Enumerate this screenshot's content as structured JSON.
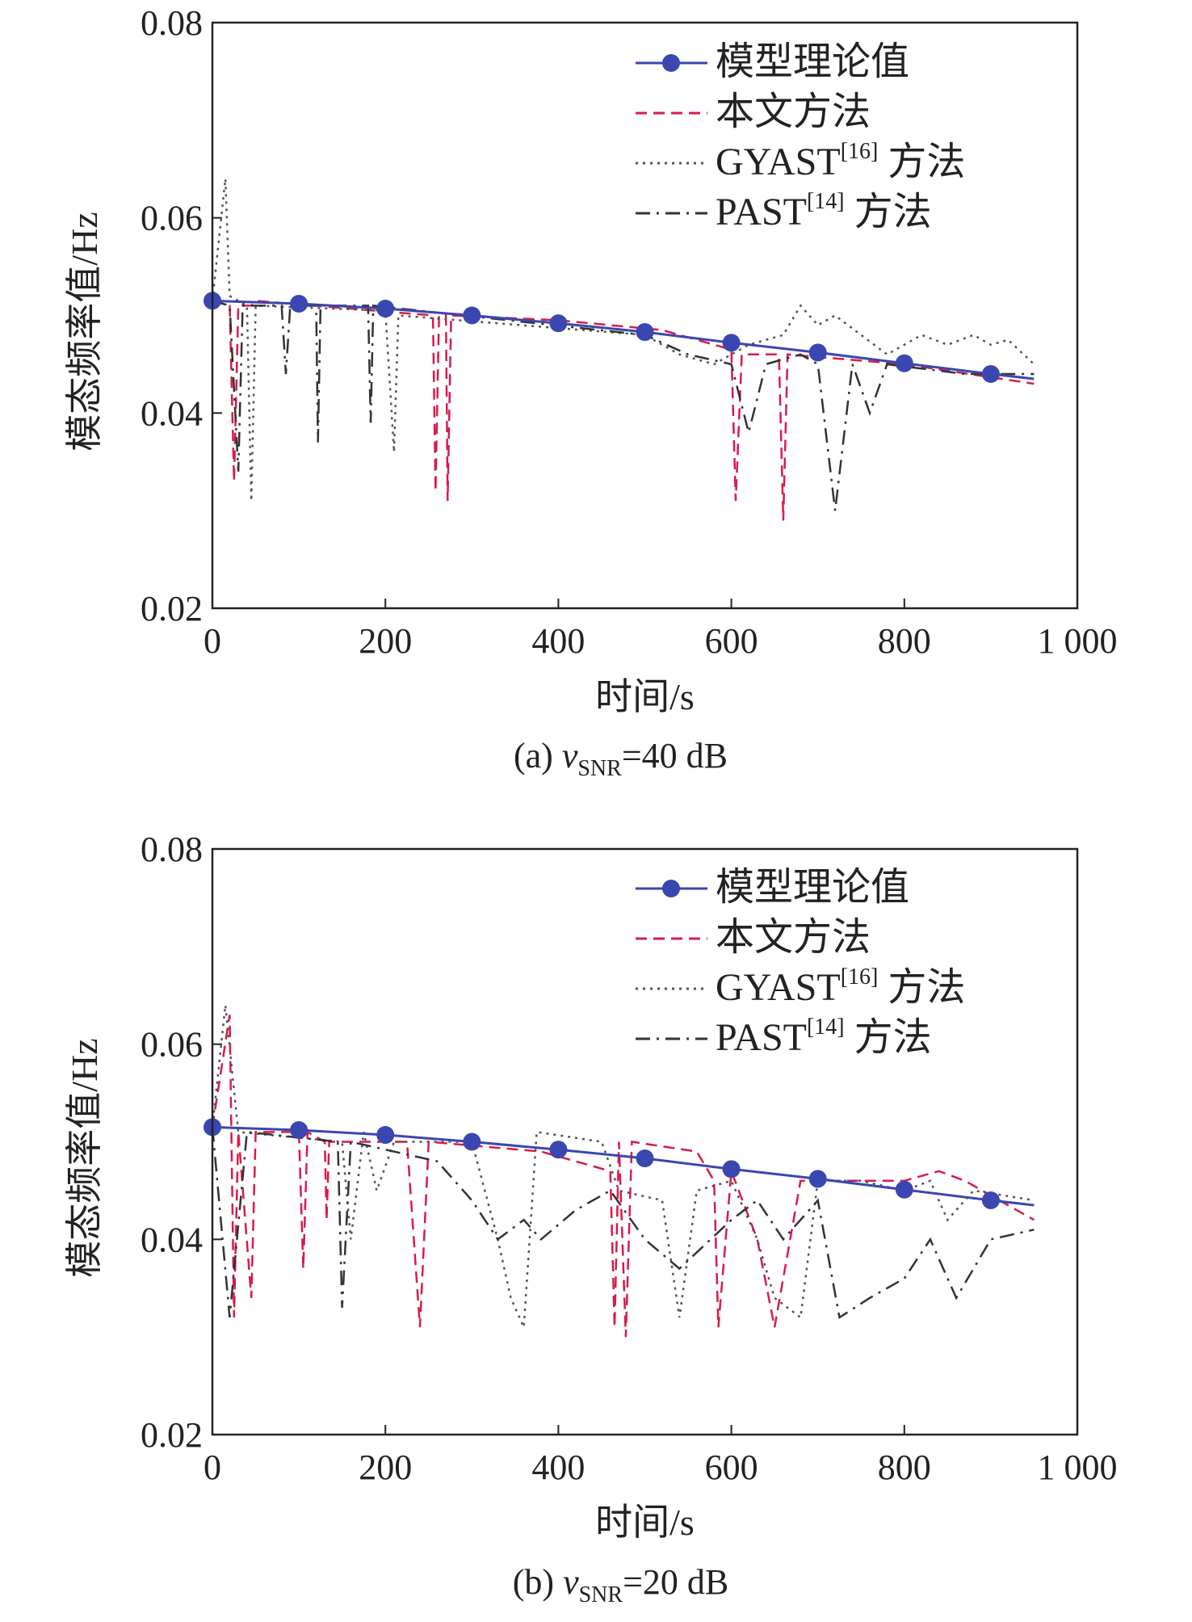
{
  "chart_data": [
    {
      "type": "line",
      "panel": "a",
      "caption": {
        "prefix": "(a) ",
        "var": "v",
        "sub": "SNR",
        "suffix": "=40 dB"
      },
      "xlabel": "时间/s",
      "ylabel": "模态频率值/Hz",
      "xlim": [
        0,
        1000
      ],
      "ylim": [
        0.02,
        0.08
      ],
      "xticks": [
        0,
        200,
        400,
        600,
        800,
        1000
      ],
      "xtick_labels": [
        "0",
        "200",
        "400",
        "600",
        "800",
        "1 000"
      ],
      "yticks": [
        0.02,
        0.04,
        0.06,
        0.08
      ],
      "ytick_labels": [
        "0.02",
        "0.04",
        "0.06",
        "0.08"
      ],
      "legend_position": "top-right",
      "series": [
        {
          "name": "模型理论值",
          "ref": "",
          "suffix": "",
          "style": "solid-marker",
          "color": "#3a47b0",
          "points": [
            [
              0,
              0.0515
            ],
            [
              100,
              0.0512
            ],
            [
              200,
              0.0507
            ],
            [
              300,
              0.05
            ],
            [
              400,
              0.0492
            ],
            [
              500,
              0.0483
            ],
            [
              600,
              0.0472
            ],
            [
              700,
              0.0462
            ],
            [
              800,
              0.0451
            ],
            [
              900,
              0.044
            ],
            [
              950,
              0.0435
            ]
          ]
        },
        {
          "name": "本文方法",
          "ref": "",
          "suffix": "",
          "style": "dashed",
          "color": "#d81b4a",
          "points": [
            [
              0,
              0.0515
            ],
            [
              20,
              0.051
            ],
            [
              25,
              0.033
            ],
            [
              30,
              0.051
            ],
            [
              45,
              0.051
            ],
            [
              50,
              0.0515
            ],
            [
              255,
              0.05
            ],
            [
              258,
              0.032
            ],
            [
              262,
              0.05
            ],
            [
              270,
              0.05
            ],
            [
              272,
              0.031
            ],
            [
              276,
              0.05
            ],
            [
              400,
              0.0495
            ],
            [
              520,
              0.0485
            ],
            [
              600,
              0.0465
            ],
            [
              605,
              0.031
            ],
            [
              612,
              0.046
            ],
            [
              655,
              0.046
            ],
            [
              660,
              0.029
            ],
            [
              665,
              0.046
            ],
            [
              800,
              0.045
            ],
            [
              950,
              0.043
            ]
          ]
        },
        {
          "name": "GYAST",
          "ref": "[16]",
          "suffix": " 方法",
          "style": "dotted",
          "color": "#555555",
          "points": [
            [
              0,
              0.0515
            ],
            [
              15,
              0.064
            ],
            [
              20,
              0.052
            ],
            [
              40,
              0.051
            ],
            [
              45,
              0.031
            ],
            [
              50,
              0.051
            ],
            [
              200,
              0.0505
            ],
            [
              210,
              0.036
            ],
            [
              215,
              0.05
            ],
            [
              500,
              0.048
            ],
            [
              540,
              0.046
            ],
            [
              580,
              0.045
            ],
            [
              620,
              0.047
            ],
            [
              660,
              0.048
            ],
            [
              680,
              0.051
            ],
            [
              700,
              0.049
            ],
            [
              720,
              0.05
            ],
            [
              750,
              0.048
            ],
            [
              780,
              0.046
            ],
            [
              820,
              0.048
            ],
            [
              850,
              0.047
            ],
            [
              880,
              0.048
            ],
            [
              900,
              0.047
            ],
            [
              920,
              0.0475
            ],
            [
              950,
              0.045
            ]
          ]
        },
        {
          "name": "PAST",
          "ref": "[14]",
          "suffix": " 方法",
          "style": "dashdot",
          "color": "#333333",
          "points": [
            [
              0,
              0.0515
            ],
            [
              20,
              0.051
            ],
            [
              30,
              0.034
            ],
            [
              35,
              0.051
            ],
            [
              80,
              0.051
            ],
            [
              85,
              0.044
            ],
            [
              90,
              0.051
            ],
            [
              120,
              0.051
            ],
            [
              122,
              0.037
            ],
            [
              125,
              0.051
            ],
            [
              180,
              0.051
            ],
            [
              183,
              0.039
            ],
            [
              186,
              0.051
            ],
            [
              500,
              0.048
            ],
            [
              550,
              0.046
            ],
            [
              600,
              0.045
            ],
            [
              620,
              0.038
            ],
            [
              640,
              0.045
            ],
            [
              680,
              0.046
            ],
            [
              700,
              0.045
            ],
            [
              720,
              0.03
            ],
            [
              740,
              0.045
            ],
            [
              760,
              0.04
            ],
            [
              780,
              0.045
            ],
            [
              870,
              0.044
            ],
            [
              950,
              0.044
            ]
          ]
        }
      ]
    },
    {
      "type": "line",
      "panel": "b",
      "caption": {
        "prefix": "(b) ",
        "var": "v",
        "sub": "SNR",
        "suffix": "=20 dB"
      },
      "xlabel": "时间/s",
      "ylabel": "模态频率值/Hz",
      "xlim": [
        0,
        1000
      ],
      "ylim": [
        0.02,
        0.08
      ],
      "xticks": [
        0,
        200,
        400,
        600,
        800,
        1000
      ],
      "xtick_labels": [
        "0",
        "200",
        "400",
        "600",
        "800",
        "1 000"
      ],
      "yticks": [
        0.02,
        0.04,
        0.06,
        0.08
      ],
      "ytick_labels": [
        "0.02",
        "0.04",
        "0.06",
        "0.08"
      ],
      "legend_position": "top-right",
      "series": [
        {
          "name": "模型理论值",
          "ref": "",
          "suffix": "",
          "style": "solid-marker",
          "color": "#3a47b0",
          "points": [
            [
              0,
              0.0515
            ],
            [
              100,
              0.0512
            ],
            [
              200,
              0.0507
            ],
            [
              300,
              0.05
            ],
            [
              400,
              0.0492
            ],
            [
              500,
              0.0483
            ],
            [
              600,
              0.0472
            ],
            [
              700,
              0.0462
            ],
            [
              800,
              0.0451
            ],
            [
              900,
              0.044
            ],
            [
              950,
              0.0435
            ]
          ]
        },
        {
          "name": "本文方法",
          "ref": "",
          "suffix": "",
          "style": "dashed",
          "color": "#d81b4a",
          "points": [
            [
              0,
              0.0515
            ],
            [
              20,
              0.063
            ],
            [
              25,
              0.032
            ],
            [
              30,
              0.051
            ],
            [
              45,
              0.034
            ],
            [
              50,
              0.051
            ],
            [
              100,
              0.051
            ],
            [
              105,
              0.037
            ],
            [
              110,
              0.051
            ],
            [
              130,
              0.05
            ],
            [
              132,
              0.042
            ],
            [
              135,
              0.05
            ],
            [
              225,
              0.05
            ],
            [
              240,
              0.031
            ],
            [
              250,
              0.05
            ],
            [
              380,
              0.049
            ],
            [
              460,
              0.047
            ],
            [
              465,
              0.031
            ],
            [
              470,
              0.05
            ],
            [
              478,
              0.03
            ],
            [
              485,
              0.05
            ],
            [
              560,
              0.049
            ],
            [
              580,
              0.046
            ],
            [
              585,
              0.031
            ],
            [
              600,
              0.047
            ],
            [
              630,
              0.04
            ],
            [
              650,
              0.031
            ],
            [
              680,
              0.046
            ],
            [
              720,
              0.046
            ],
            [
              800,
              0.046
            ],
            [
              840,
              0.047
            ],
            [
              870,
              0.046
            ],
            [
              950,
              0.042
            ]
          ]
        },
        {
          "name": "GYAST",
          "ref": "[16]",
          "suffix": " 方法",
          "style": "dotted",
          "color": "#555555",
          "points": [
            [
              0,
              0.0515
            ],
            [
              15,
              0.064
            ],
            [
              30,
              0.051
            ],
            [
              150,
              0.05
            ],
            [
              160,
              0.04
            ],
            [
              175,
              0.051
            ],
            [
              190,
              0.045
            ],
            [
              210,
              0.05
            ],
            [
              300,
              0.05
            ],
            [
              330,
              0.04
            ],
            [
              345,
              0.034
            ],
            [
              360,
              0.031
            ],
            [
              375,
              0.051
            ],
            [
              450,
              0.05
            ],
            [
              470,
              0.045
            ],
            [
              520,
              0.044
            ],
            [
              540,
              0.032
            ],
            [
              560,
              0.045
            ],
            [
              600,
              0.046
            ],
            [
              630,
              0.04
            ],
            [
              650,
              0.034
            ],
            [
              680,
              0.032
            ],
            [
              700,
              0.046
            ],
            [
              750,
              0.046
            ],
            [
              800,
              0.045
            ],
            [
              830,
              0.046
            ],
            [
              850,
              0.042
            ],
            [
              880,
              0.045
            ],
            [
              950,
              0.044
            ]
          ]
        },
        {
          "name": "PAST",
          "ref": "[14]",
          "suffix": " 方法",
          "style": "dashdot",
          "color": "#333333",
          "points": [
            [
              0,
              0.0515
            ],
            [
              20,
              0.032
            ],
            [
              40,
              0.051
            ],
            [
              145,
              0.05
            ],
            [
              150,
              0.033
            ],
            [
              160,
              0.05
            ],
            [
              260,
              0.048
            ],
            [
              300,
              0.044
            ],
            [
              330,
              0.04
            ],
            [
              360,
              0.042
            ],
            [
              380,
              0.04
            ],
            [
              420,
              0.043
            ],
            [
              460,
              0.045
            ],
            [
              500,
              0.04
            ],
            [
              540,
              0.037
            ],
            [
              600,
              0.042
            ],
            [
              630,
              0.044
            ],
            [
              660,
              0.04
            ],
            [
              700,
              0.044
            ],
            [
              725,
              0.032
            ],
            [
              760,
              0.034
            ],
            [
              800,
              0.036
            ],
            [
              830,
              0.04
            ],
            [
              860,
              0.034
            ],
            [
              900,
              0.04
            ],
            [
              950,
              0.041
            ]
          ]
        }
      ]
    }
  ]
}
